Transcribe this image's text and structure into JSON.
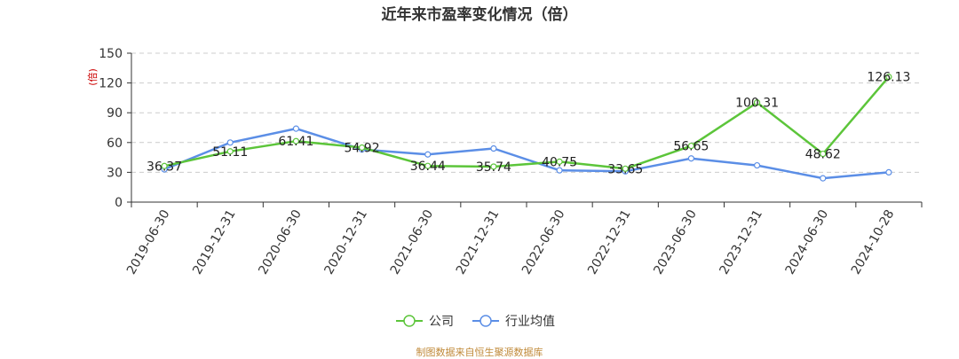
{
  "chart_data": {
    "type": "line",
    "title": "近年来市盈率变化情况（倍）",
    "ylabel": "(倍)",
    "ylim": [
      0,
      150
    ],
    "yticks": [
      0,
      30,
      60,
      90,
      120,
      150
    ],
    "categories": [
      "2019-06-30",
      "2019-12-31",
      "2020-06-30",
      "2020-12-31",
      "2021-06-30",
      "2021-12-31",
      "2022-06-30",
      "2022-12-31",
      "2023-06-30",
      "2023-12-31",
      "2024-06-30",
      "2024-10-28"
    ],
    "series": [
      {
        "name": "公司",
        "color": "#5cc53a",
        "values": [
          36.37,
          51.11,
          61.41,
          54.92,
          36.44,
          35.74,
          40.75,
          33.65,
          56.65,
          100.31,
          48.62,
          126.13
        ],
        "labels": [
          "36.37",
          "51.11",
          "61.41",
          "54.92",
          "36.44",
          "35.74",
          "40.75",
          "33.65",
          "56.65",
          "100.31",
          "48.62",
          "126.13"
        ]
      },
      {
        "name": "行业均值",
        "color": "#5b8ee6",
        "values": [
          33,
          60,
          74,
          53,
          48,
          54,
          32,
          31,
          44,
          37,
          24,
          30
        ]
      }
    ],
    "grid": true,
    "legend_position": "bottom-center"
  },
  "source_text": "制图数据来自恒生聚源数据库"
}
